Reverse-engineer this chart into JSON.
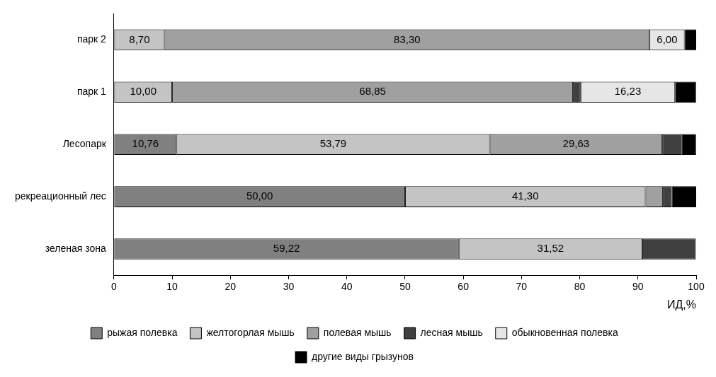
{
  "chart_data": {
    "type": "bar",
    "orientation": "horizontal",
    "stacked": true,
    "xlabel": "ИД,%",
    "categories": [
      "парк 2",
      "парк 1",
      "Лесопарк",
      "рекреационный лес",
      "зеленая зона"
    ],
    "xlim": [
      0,
      100
    ],
    "xticks": [
      0,
      10,
      20,
      30,
      40,
      50,
      60,
      70,
      80,
      90,
      100
    ],
    "grid": false,
    "legend": "bottom",
    "series": [
      {
        "name": "рыжая полевка",
        "color": "#808080",
        "values": [
          0,
          0,
          10.76,
          50.0,
          59.22
        ],
        "value_labels": [
          null,
          null,
          "10,76",
          "50,00",
          "59,22"
        ]
      },
      {
        "name": "желтогорлая мышь",
        "color": "#c4c4c4",
        "values": [
          8.7,
          10.0,
          53.79,
          41.3,
          31.52
        ],
        "value_labels": [
          "8,70",
          "10,00",
          "53,79",
          "41,30",
          "31,52"
        ]
      },
      {
        "name": "полевая мышь",
        "color": "#a0a0a0",
        "values": [
          83.3,
          68.85,
          29.63,
          3.0,
          0
        ],
        "value_labels": [
          "83,30",
          "68,85",
          "29,63",
          null,
          null
        ]
      },
      {
        "name": "лесная мышь",
        "color": "#404040",
        "values": [
          0,
          1.3,
          3.3,
          1.5,
          9.2
        ],
        "value_labels": [
          null,
          null,
          null,
          null,
          null
        ]
      },
      {
        "name": "обыкновенная полевка",
        "color": "#e6e6e6",
        "values": [
          6.0,
          16.23,
          0,
          0,
          0
        ],
        "value_labels": [
          "6,00",
          "16,23",
          null,
          null,
          null
        ]
      },
      {
        "name": "другие виды грызунов",
        "color": "#000000",
        "values": [
          2.0,
          3.6,
          2.5,
          4.2,
          0
        ],
        "value_labels": [
          null,
          null,
          null,
          null,
          null
        ]
      }
    ]
  }
}
